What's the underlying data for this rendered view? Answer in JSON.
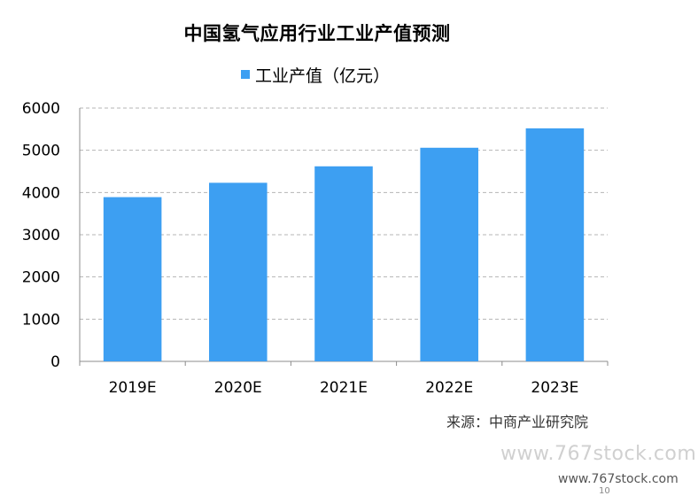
{
  "colors": {
    "bar": "#3d9ff2",
    "grid": "#b5b5b5",
    "axis": "#8c8c8c"
  },
  "chart_data": {
    "type": "bar",
    "title": "中国氢气应用行业工业产值预测",
    "categories": [
      "2019E",
      "2020E",
      "2021E",
      "2022E",
      "2023E"
    ],
    "series": [
      {
        "name": "工业产值（亿元）",
        "values": [
          3890,
          4230,
          4620,
          5060,
          5520
        ]
      }
    ],
    "ylim": [
      0,
      6000
    ],
    "yticks": [
      "0",
      "1000",
      "2000",
      "3000",
      "4000",
      "5000",
      "6000"
    ],
    "grid": true,
    "legend_position": "top"
  },
  "footer": {
    "source": "来源：中商产业研究院",
    "watermark_main": "www.767stock.com",
    "watermark_small": "www.767stock.com",
    "page_number": "10"
  }
}
